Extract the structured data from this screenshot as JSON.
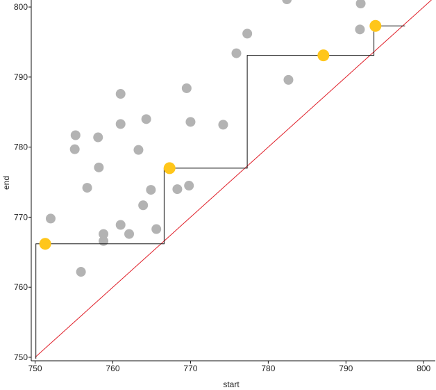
{
  "chart_data": {
    "type": "scatter",
    "xlabel": "start",
    "ylabel": "end",
    "xlim": [
      749.5,
      801.5
    ],
    "ylim": [
      749.5,
      801
    ],
    "xticks": [
      "750",
      "760",
      "770",
      "780",
      "790",
      "800"
    ],
    "yticks": [
      "750",
      "760",
      "770",
      "780",
      "790",
      "800"
    ],
    "grid": false,
    "series": [
      {
        "role": "points",
        "color": "#b3b3b3",
        "points": [
          [
            752.0,
            769.8
          ],
          [
            755.2,
            781.7
          ],
          [
            755.1,
            779.7
          ],
          [
            755.9,
            762.2
          ],
          [
            756.7,
            774.2
          ],
          [
            758.1,
            781.4
          ],
          [
            758.2,
            777.1
          ],
          [
            758.8,
            767.6
          ],
          [
            758.8,
            766.6
          ],
          [
            761.0,
            787.6
          ],
          [
            761.0,
            783.3
          ],
          [
            761.0,
            768.9
          ],
          [
            762.1,
            767.6
          ],
          [
            763.3,
            779.6
          ],
          [
            763.9,
            771.7
          ],
          [
            764.3,
            784.0
          ],
          [
            764.9,
            773.9
          ],
          [
            765.6,
            768.3
          ],
          [
            768.3,
            774.0
          ],
          [
            769.5,
            788.4
          ],
          [
            769.8,
            774.5
          ],
          [
            770.0,
            783.6
          ],
          [
            774.2,
            783.2
          ],
          [
            775.9,
            793.4
          ],
          [
            777.3,
            796.2
          ],
          [
            782.4,
            801.1
          ],
          [
            782.6,
            789.6
          ],
          [
            791.8,
            796.8
          ],
          [
            791.9,
            800.5
          ]
        ]
      },
      {
        "role": "highlighted",
        "color": "#ffc61a",
        "points": [
          [
            751.3,
            766.2
          ],
          [
            767.3,
            777.0
          ],
          [
            787.1,
            793.1
          ],
          [
            793.8,
            797.3
          ]
        ]
      },
      {
        "role": "step-line",
        "color": "#111111",
        "points": [
          [
            750.1,
            749.8
          ],
          [
            750.1,
            766.2
          ],
          [
            766.6,
            766.2
          ],
          [
            766.6,
            777.0
          ],
          [
            777.3,
            777.0
          ],
          [
            777.3,
            793.1
          ],
          [
            793.6,
            793.1
          ],
          [
            793.6,
            797.3
          ],
          [
            797.6,
            797.3
          ]
        ]
      },
      {
        "role": "diagonal",
        "color": "#e0202a",
        "points": [
          [
            750.0,
            750.0
          ],
          [
            801.0,
            801.0
          ]
        ]
      }
    ]
  }
}
